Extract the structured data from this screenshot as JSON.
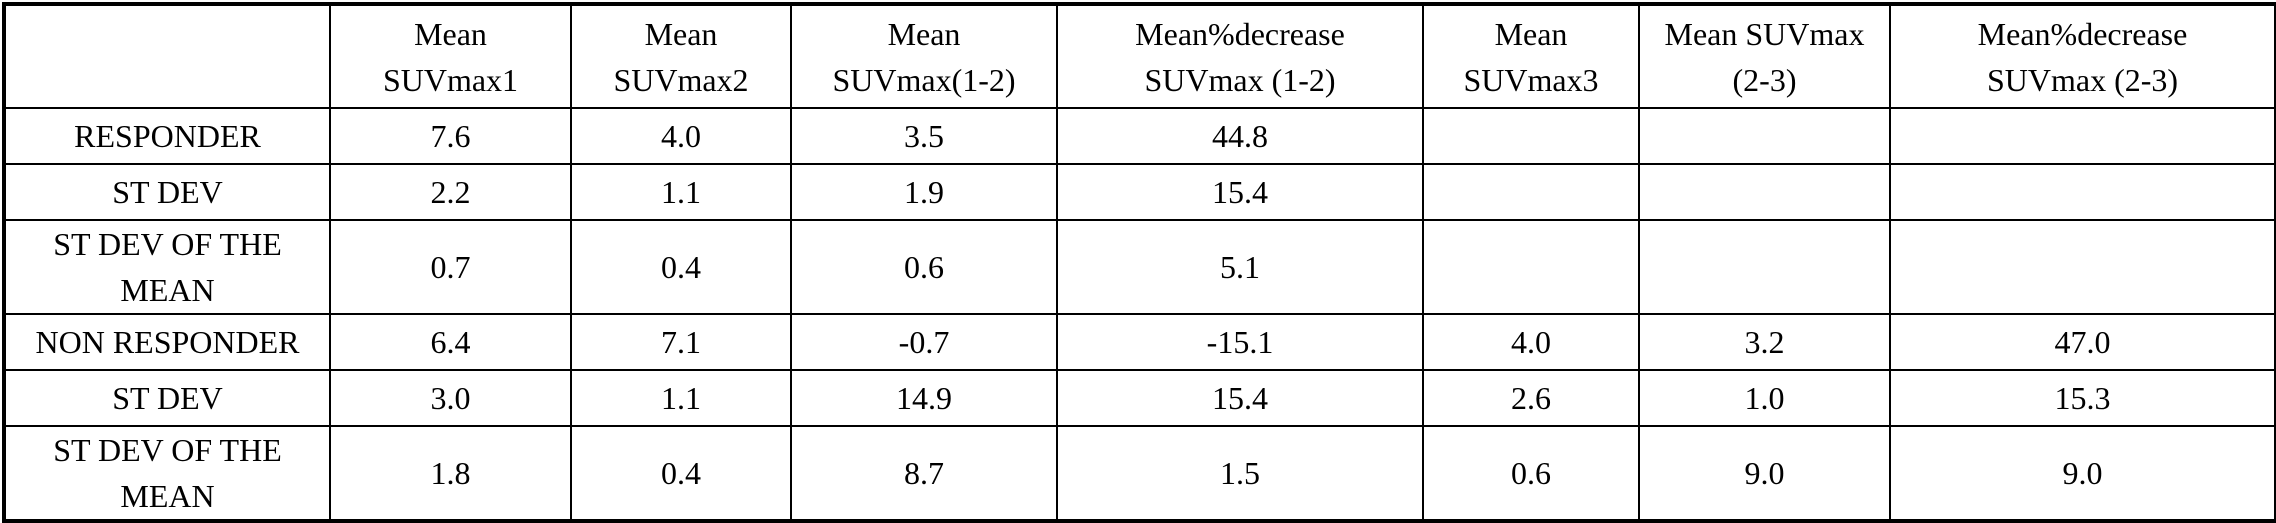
{
  "table": {
    "columns": [
      "",
      "Mean SUVmax1",
      "Mean SUVmax2",
      "Mean SUVmax(1-2)",
      "Mean%decrease SUVmax (1-2)",
      "Mean SUVmax3",
      "Mean SUVmax (2-3)",
      "Mean%decrease SUVmax (2-3)"
    ],
    "header_lines": [
      [
        "",
        ""
      ],
      [
        "Mean",
        "SUVmax1"
      ],
      [
        "Mean",
        "SUVmax2"
      ],
      [
        "Mean",
        "SUVmax(1-2)"
      ],
      [
        "Mean%decrease",
        "SUVmax (1-2)"
      ],
      [
        "Mean",
        "SUVmax3"
      ],
      [
        "Mean SUVmax",
        "(2-3)"
      ],
      [
        "Mean%decrease",
        "SUVmax (2-3)"
      ]
    ],
    "rows": [
      {
        "label_lines": [
          "RESPONDER"
        ],
        "cells": [
          "7.6",
          "4.0",
          "3.5",
          "44.8",
          "",
          "",
          ""
        ]
      },
      {
        "label_lines": [
          "ST DEV"
        ],
        "cells": [
          "2.2",
          "1.1",
          "1.9",
          "15.4",
          "",
          "",
          ""
        ]
      },
      {
        "label_lines": [
          "ST DEV OF THE",
          "MEAN"
        ],
        "cells": [
          "0.7",
          "0.4",
          "0.6",
          "5.1",
          "",
          "",
          ""
        ]
      },
      {
        "label_lines": [
          "NON RESPONDER"
        ],
        "cells": [
          "6.4",
          "7.1",
          "-0.7",
          "-15.1",
          "4.0",
          "3.2",
          "47.0"
        ]
      },
      {
        "label_lines": [
          "ST DEV"
        ],
        "cells": [
          "3.0",
          "1.1",
          "14.9",
          "15.4",
          "2.6",
          "1.0",
          "15.3"
        ]
      },
      {
        "label_lines": [
          "ST DEV OF THE",
          "MEAN"
        ],
        "cells": [
          "1.8",
          "0.4",
          "8.7",
          "1.5",
          "0.6",
          "9.0",
          "9.0"
        ]
      }
    ]
  }
}
